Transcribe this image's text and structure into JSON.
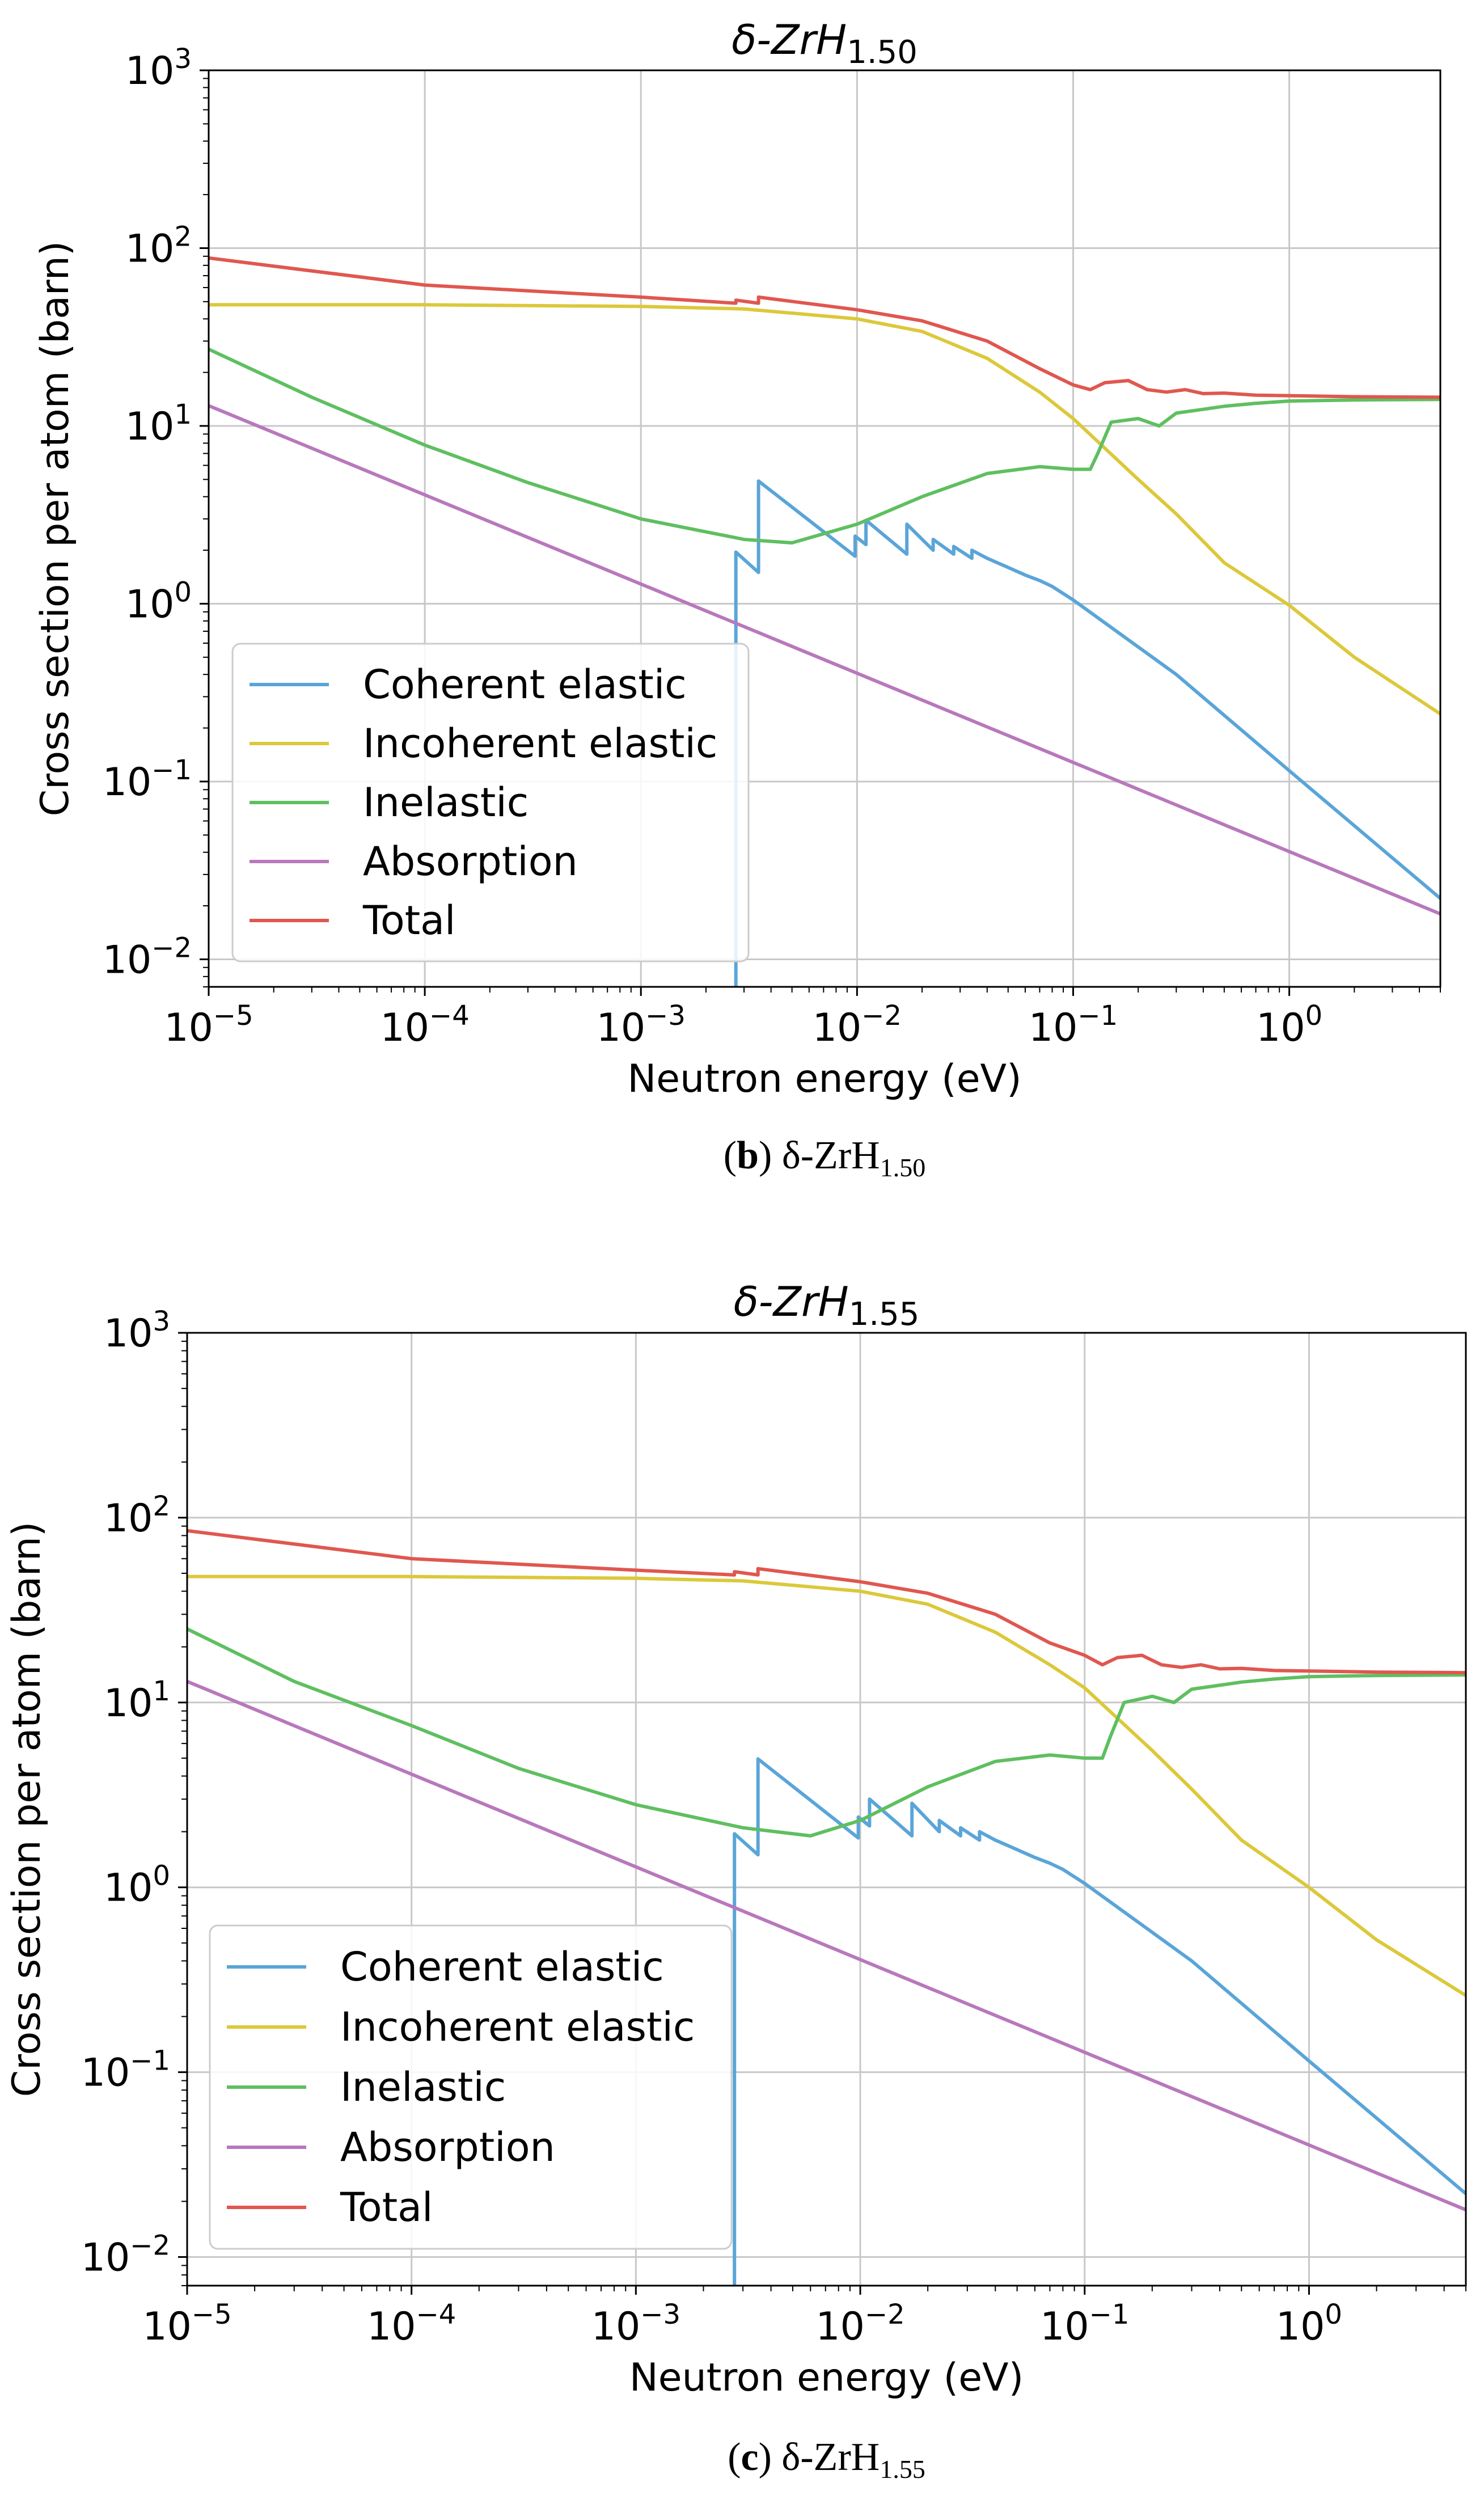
{
  "chart_data": [
    {
      "type": "line",
      "title": "δ-ZrH1.50",
      "title_base": "δ-ZrH",
      "title_sub": "1.50",
      "caption_letter": "b",
      "caption_text": "δ-ZrH",
      "caption_sub": "1.50",
      "xlabel": "Neutron energy (eV)",
      "ylabel": "Cross section per atom (barn)",
      "xscale": "log",
      "yscale": "log",
      "xlim": [
        1e-05,
        5
      ],
      "ylim": [
        0.007,
        1000
      ],
      "xticks": [
        {
          "v": 1e-05,
          "e": "−5"
        },
        {
          "v": 0.0001,
          "e": "−4"
        },
        {
          "v": 0.001,
          "e": "−3"
        },
        {
          "v": 0.01,
          "e": "−2"
        },
        {
          "v": 0.1,
          "e": "−1"
        },
        {
          "v": 1,
          "e": "0"
        }
      ],
      "yticks": [
        {
          "v": 0.01,
          "e": "−2"
        },
        {
          "v": 0.1,
          "e": "−1"
        },
        {
          "v": 1,
          "e": "0"
        },
        {
          "v": 10,
          "e": "1"
        },
        {
          "v": 100,
          "e": "2"
        },
        {
          "v": 1000,
          "e": "3"
        }
      ],
      "grid": true,
      "legend_position": "lower-left",
      "series": [
        {
          "name": "Coherent elastic",
          "color": "#5aa5d8",
          "x": [
            0.00275,
            0.00275,
            0.0035,
            0.0035,
            0.0098,
            0.0098,
            0.011,
            0.011,
            0.017,
            0.017,
            0.0225,
            0.0225,
            0.028,
            0.028,
            0.034,
            0.034,
            0.04,
            0.05,
            0.06,
            0.07,
            0.08,
            0.1,
            0.3,
            1,
            5
          ],
          "y": [
            0.007,
            1.95,
            1.5,
            4.9,
            1.85,
            2.4,
            2.15,
            2.95,
            1.9,
            2.8,
            2.0,
            2.3,
            1.9,
            2.1,
            1.8,
            2.0,
            1.8,
            1.6,
            1.45,
            1.35,
            1.25,
            1.05,
            0.4,
            0.115,
            0.022
          ]
        },
        {
          "name": "Incoherent elastic",
          "color": "#dcc83a",
          "x": [
            1e-05,
            0.0001,
            0.001,
            0.003,
            0.01,
            0.02,
            0.04,
            0.07,
            0.1,
            0.2,
            0.3,
            0.5,
            1,
            2,
            5
          ],
          "y": [
            48,
            48,
            47,
            45.5,
            40,
            34,
            24,
            15.5,
            11,
            5,
            3.2,
            1.7,
            0.98,
            0.5,
            0.24
          ]
        },
        {
          "name": "Inelastic",
          "color": "#5fbf60",
          "x": [
            1e-05,
            3e-05,
            0.0001,
            0.0003,
            0.001,
            0.003,
            0.005,
            0.01,
            0.02,
            0.04,
            0.07,
            0.1,
            0.12,
            0.13,
            0.15,
            0.2,
            0.25,
            0.3,
            0.4,
            0.5,
            0.7,
            1,
            2,
            5
          ],
          "y": [
            27,
            14.5,
            7.8,
            4.8,
            3.0,
            2.3,
            2.2,
            2.8,
            4.0,
            5.4,
            5.9,
            5.7,
            5.7,
            7.0,
            10.5,
            11,
            10,
            11.8,
            12.4,
            12.9,
            13.4,
            13.8,
            14.0,
            14.1
          ]
        },
        {
          "name": "Absorption",
          "color": "#b878bd",
          "x": [
            1e-05,
            5
          ],
          "y": [
            13,
            0.018
          ]
        },
        {
          "name": "Total",
          "color": "#e0574f",
          "x": [
            1e-05,
            0.0001,
            0.001,
            0.00275,
            0.00275,
            0.0035,
            0.0035,
            0.01,
            0.02,
            0.04,
            0.07,
            0.1,
            0.12,
            0.14,
            0.18,
            0.22,
            0.27,
            0.33,
            0.4,
            0.5,
            0.7,
            1,
            2,
            5
          ],
          "y": [
            88,
            62,
            53,
            49,
            51,
            49,
            53,
            45,
            39,
            30,
            21,
            17,
            16,
            17.5,
            18,
            16,
            15.5,
            16,
            15.2,
            15.3,
            14.9,
            14.8,
            14.6,
            14.5
          ]
        }
      ]
    },
    {
      "type": "line",
      "title": "δ-ZrH1.55",
      "title_base": "δ-ZrH",
      "title_sub": "1.55",
      "caption_letter": "c",
      "caption_text": "δ-ZrH",
      "caption_sub": "1.55",
      "xlabel": "Neutron energy (eV)",
      "ylabel": "Cross section per atom (barn)",
      "xscale": "log",
      "yscale": "log",
      "xlim": [
        1e-05,
        5
      ],
      "ylim": [
        0.007,
        1000
      ],
      "xticks": [
        {
          "v": 1e-05,
          "e": "−5"
        },
        {
          "v": 0.0001,
          "e": "−4"
        },
        {
          "v": 0.001,
          "e": "−3"
        },
        {
          "v": 0.01,
          "e": "−2"
        },
        {
          "v": 0.1,
          "e": "−1"
        },
        {
          "v": 1,
          "e": "0"
        }
      ],
      "yticks": [
        {
          "v": 0.01,
          "e": "−2"
        },
        {
          "v": 0.1,
          "e": "−1"
        },
        {
          "v": 1,
          "e": "0"
        },
        {
          "v": 10,
          "e": "1"
        },
        {
          "v": 100,
          "e": "2"
        },
        {
          "v": 1000,
          "e": "3"
        }
      ],
      "grid": true,
      "legend_position": "lower-left",
      "series": [
        {
          "name": "Coherent elastic",
          "color": "#5aa5d8",
          "x": [
            0.00275,
            0.00275,
            0.0035,
            0.0035,
            0.0098,
            0.0098,
            0.011,
            0.011,
            0.017,
            0.017,
            0.0225,
            0.0225,
            0.028,
            0.028,
            0.034,
            0.034,
            0.04,
            0.05,
            0.06,
            0.07,
            0.08,
            0.1,
            0.3,
            1,
            5
          ],
          "y": [
            0.007,
            1.95,
            1.5,
            4.95,
            1.85,
            2.4,
            2.15,
            3.0,
            1.9,
            2.85,
            2.0,
            2.3,
            1.9,
            2.1,
            1.8,
            2.0,
            1.8,
            1.6,
            1.45,
            1.35,
            1.25,
            1.05,
            0.4,
            0.115,
            0.022
          ]
        },
        {
          "name": "Incoherent elastic",
          "color": "#dcc83a",
          "x": [
            1e-05,
            0.0001,
            0.001,
            0.003,
            0.01,
            0.02,
            0.04,
            0.07,
            0.1,
            0.2,
            0.3,
            0.5,
            1,
            2,
            5
          ],
          "y": [
            48,
            48,
            47,
            45.5,
            40,
            34,
            24,
            16,
            12,
            5.5,
            3.4,
            1.8,
            1.0,
            0.52,
            0.26
          ]
        },
        {
          "name": "Inelastic",
          "color": "#5fbf60",
          "x": [
            1e-05,
            3e-05,
            0.0001,
            0.0003,
            0.001,
            0.003,
            0.006,
            0.01,
            0.02,
            0.04,
            0.07,
            0.1,
            0.12,
            0.13,
            0.15,
            0.2,
            0.25,
            0.3,
            0.4,
            0.5,
            0.7,
            1,
            2,
            5
          ],
          "y": [
            25,
            13,
            7.5,
            4.4,
            2.8,
            2.1,
            1.9,
            2.3,
            3.5,
            4.8,
            5.2,
            5.0,
            5.0,
            6.5,
            10,
            10.8,
            10,
            11.8,
            12.4,
            12.9,
            13.4,
            13.8,
            14.0,
            14.1
          ]
        },
        {
          "name": "Absorption",
          "color": "#b878bd",
          "x": [
            1e-05,
            5
          ],
          "y": [
            13,
            0.018
          ]
        },
        {
          "name": "Total",
          "color": "#e0574f",
          "x": [
            1e-05,
            0.0001,
            0.001,
            0.00275,
            0.00275,
            0.0035,
            0.0035,
            0.01,
            0.02,
            0.04,
            0.07,
            0.1,
            0.12,
            0.14,
            0.18,
            0.22,
            0.27,
            0.33,
            0.4,
            0.5,
            0.7,
            1,
            2,
            5
          ],
          "y": [
            85,
            60,
            52,
            49,
            51,
            49,
            53,
            45,
            39,
            30,
            21,
            18,
            16,
            17.5,
            18,
            16,
            15.5,
            16,
            15.2,
            15.3,
            14.9,
            14.8,
            14.6,
            14.5
          ]
        }
      ]
    }
  ]
}
